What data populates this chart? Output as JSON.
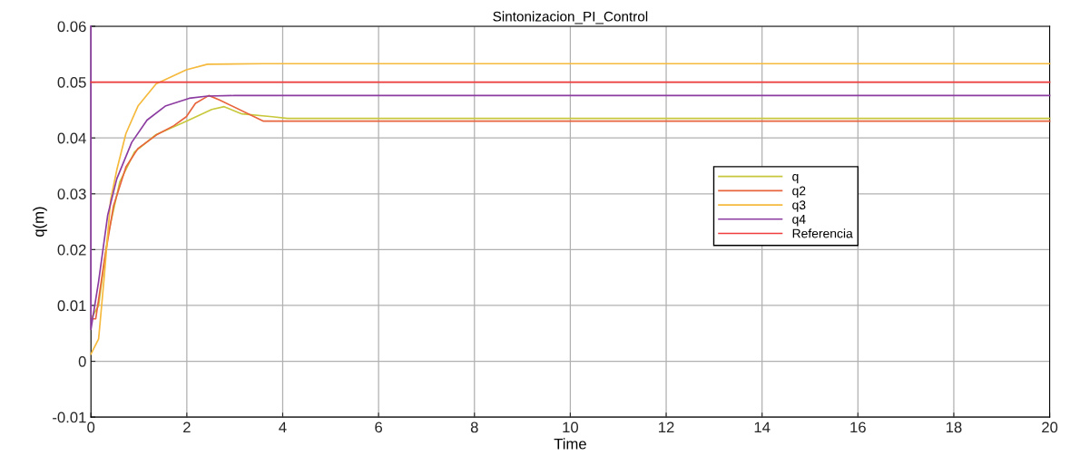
{
  "chart_data": {
    "type": "line",
    "title": "Sintonizacion_PI_Control",
    "xlabel": "Time",
    "ylabel": "q(m)",
    "xlim": [
      0,
      20
    ],
    "ylim": [
      -0.01,
      0.06
    ],
    "xticks": [
      0,
      2,
      4,
      6,
      8,
      10,
      12,
      14,
      16,
      18,
      20
    ],
    "yticks": [
      -0.01,
      0,
      0.01,
      0.02,
      0.03,
      0.04,
      0.05,
      0.06
    ],
    "grid": true,
    "legend": "right",
    "marker": "none",
    "line_style": "solid",
    "series": [
      {
        "name": "q",
        "color": "#c8c83c",
        "x": [
          0,
          0.16,
          0.35,
          0.6,
          0.91,
          1.36,
          1.99,
          2.52,
          2.78,
          3.15,
          3.78,
          4.1,
          20
        ],
        "values": [
          0.0076,
          0.01,
          0.0224,
          0.0321,
          0.0375,
          0.0406,
          0.043,
          0.0451,
          0.0456,
          0.0443,
          0.0438,
          0.0435,
          0.0435
        ]
      },
      {
        "name": "q2",
        "color": "#e8643c",
        "x": [
          0,
          0.1,
          0.28,
          0.47,
          0.73,
          0.98,
          1.36,
          1.73,
          1.99,
          2.18,
          2.46,
          2.68,
          3.6,
          20
        ],
        "values": [
          0.0076,
          0.0076,
          0.0181,
          0.0278,
          0.0348,
          0.0381,
          0.0405,
          0.0422,
          0.0438,
          0.0462,
          0.0476,
          0.0468,
          0.043,
          0.043
        ]
      },
      {
        "name": "q3",
        "color": "#f5b93c",
        "x": [
          0,
          0.16,
          0.28,
          0.41,
          0.54,
          0.73,
          0.98,
          1.36,
          1.99,
          2.43,
          3.6,
          20
        ],
        "values": [
          0.0013,
          0.004,
          0.0154,
          0.0289,
          0.0343,
          0.0408,
          0.0457,
          0.0497,
          0.0522,
          0.0532,
          0.0533,
          0.0533
        ]
      },
      {
        "name": "q4",
        "color": "#8c3ca0",
        "x": [
          0,
          0,
          0.16,
          0.35,
          0.54,
          0.85,
          1.17,
          1.55,
          2.05,
          2.43,
          3.0,
          20
        ],
        "values": [
          0.06,
          0.0057,
          0.0143,
          0.0262,
          0.0327,
          0.0392,
          0.0432,
          0.0457,
          0.0471,
          0.0475,
          0.0476,
          0.0476
        ]
      },
      {
        "name": "Referencia",
        "color": "#f03c3c",
        "x": [
          0,
          20
        ],
        "values": [
          0.05,
          0.05
        ]
      }
    ]
  }
}
